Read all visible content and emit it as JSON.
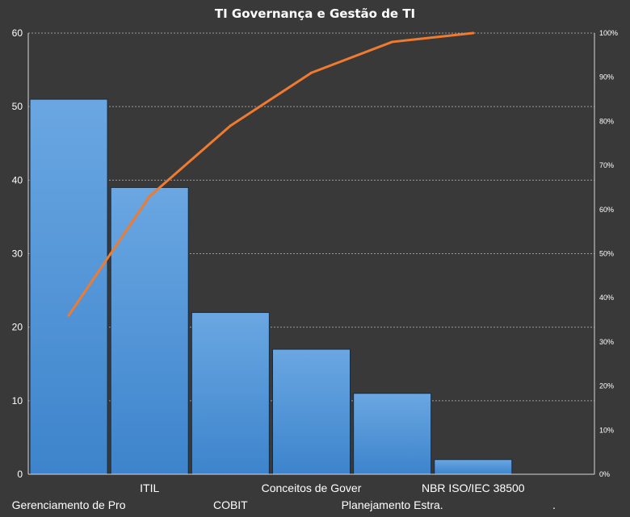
{
  "chart_data": {
    "type": "bar",
    "title": "TI Governança e Gestão de TI",
    "categories": [
      "Gerenciamento de Pro",
      "ITIL",
      "COBIT",
      "Conceitos de Gover",
      "Planejamento Estra.",
      "NBR ISO/IEC 38500",
      "."
    ],
    "values": [
      51,
      39,
      22,
      17,
      11,
      2,
      0
    ],
    "cumulative_percent": [
      36,
      63,
      79,
      91,
      98,
      100
    ],
    "ylim": [
      0,
      60
    ],
    "y_ticks": [
      "0",
      "10",
      "20",
      "30",
      "40",
      "50",
      "60"
    ],
    "y2lim": [
      0,
      100
    ],
    "y2_ticks": [
      "0%",
      "10%",
      "20%",
      "30%",
      "40%",
      "50%",
      "60%",
      "70%",
      "80%",
      "90%",
      "100%"
    ],
    "grid": true,
    "colors": {
      "background": "#3a3939",
      "bar": "#4f94d8",
      "line": "#ee7b30",
      "grid": "#9a9a9a"
    }
  }
}
